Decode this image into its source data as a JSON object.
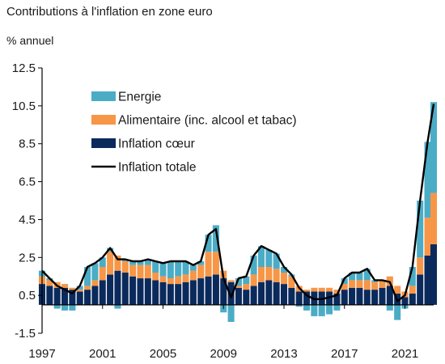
{
  "chart_data": {
    "type": "area",
    "title": "Contributions à l'inflation en zone euro",
    "ylabel": "% annuel",
    "ylim": [
      -1.5,
      12.5
    ],
    "yticks": [
      -1.5,
      0.5,
      2.5,
      4.5,
      6.5,
      8.5,
      10.5,
      12.5
    ],
    "ytick_labels": [
      "-1.5",
      "0.5",
      "2.5",
      "4.5",
      "6.5",
      "8.5",
      "10.5",
      "12.5"
    ],
    "xlim": [
      1997,
      2022.9
    ],
    "xticks": [
      1997,
      2001,
      2005,
      2009,
      2013,
      2017,
      2021
    ],
    "xtick_labels": [
      "1997",
      "2001",
      "2005",
      "2009",
      "2013",
      "2017",
      "2021"
    ],
    "baseline": 0,
    "legend_position": "top-left",
    "colors": {
      "energy": "#4bacc6",
      "food": "#f79646",
      "core": "#0b2a5c",
      "headline": "#000000"
    },
    "x": [
      1997.0,
      1997.5,
      1998.0,
      1998.5,
      1999.0,
      1999.5,
      2000.0,
      2000.5,
      2001.0,
      2001.5,
      2002.0,
      2002.5,
      2003.0,
      2003.5,
      2004.0,
      2004.5,
      2005.0,
      2005.5,
      2006.0,
      2006.5,
      2007.0,
      2007.5,
      2008.0,
      2008.5,
      2009.0,
      2009.5,
      2010.0,
      2010.5,
      2011.0,
      2011.5,
      2012.0,
      2012.5,
      2013.0,
      2013.5,
      2014.0,
      2014.5,
      2015.0,
      2015.5,
      2016.0,
      2016.5,
      2017.0,
      2017.5,
      2018.0,
      2018.5,
      2019.0,
      2019.5,
      2020.0,
      2020.5,
      2021.0,
      2021.5,
      2022.0,
      2022.5,
      2022.9
    ],
    "series": [
      {
        "name": "Inflation cœur",
        "key": "core",
        "values": [
          1.1,
          1.0,
          0.9,
          0.9,
          0.8,
          0.7,
          0.8,
          1.0,
          1.3,
          1.6,
          1.8,
          1.7,
          1.5,
          1.4,
          1.4,
          1.3,
          1.2,
          1.1,
          1.1,
          1.2,
          1.3,
          1.4,
          1.5,
          1.6,
          1.4,
          1.2,
          0.9,
          0.8,
          1.0,
          1.2,
          1.3,
          1.2,
          1.1,
          0.9,
          0.7,
          0.7,
          0.7,
          0.7,
          0.7,
          0.6,
          0.8,
          0.9,
          0.9,
          0.8,
          0.8,
          0.9,
          1.0,
          0.6,
          0.4,
          0.6,
          1.6,
          2.6,
          3.2
        ]
      },
      {
        "name": "Alimentaire (inc. alcool et tabac)",
        "key": "food",
        "values": [
          0.4,
          0.3,
          0.3,
          0.2,
          0.1,
          0.1,
          0.2,
          0.3,
          0.7,
          1.2,
          0.8,
          0.6,
          0.6,
          0.7,
          0.7,
          0.4,
          0.3,
          0.3,
          0.4,
          0.4,
          0.5,
          0.7,
          1.3,
          1.2,
          0.4,
          0.1,
          0.1,
          0.3,
          0.6,
          0.8,
          0.7,
          0.7,
          0.6,
          0.6,
          0.3,
          0.1,
          0.2,
          0.2,
          0.2,
          0.2,
          0.3,
          0.4,
          0.4,
          0.5,
          0.4,
          0.4,
          0.5,
          0.4,
          0.3,
          0.4,
          0.9,
          2.0,
          2.7
        ]
      },
      {
        "name": "Energie",
        "key": "energy",
        "values": [
          0.3,
          0.1,
          -0.2,
          -0.3,
          -0.3,
          0.2,
          1.0,
          0.9,
          0.5,
          0.2,
          -0.2,
          0.1,
          0.2,
          0.2,
          0.3,
          0.6,
          0.7,
          0.9,
          0.8,
          0.7,
          0.3,
          0.2,
          0.9,
          1.4,
          -0.4,
          -0.9,
          0.4,
          0.4,
          1.0,
          1.1,
          0.9,
          0.8,
          0.3,
          0.1,
          -0.1,
          -0.3,
          -0.6,
          -0.6,
          -0.5,
          -0.3,
          0.3,
          0.4,
          0.4,
          0.6,
          0.1,
          0.0,
          -0.3,
          -0.8,
          -0.2,
          1.0,
          3.0,
          4.0,
          4.8
        ]
      },
      {
        "name": "Inflation totale",
        "key": "headline",
        "values": [
          1.8,
          1.4,
          1.0,
          0.8,
          0.6,
          1.0,
          2.0,
          2.2,
          2.5,
          3.0,
          2.4,
          2.4,
          2.3,
          2.3,
          2.4,
          2.3,
          2.2,
          2.3,
          2.3,
          2.3,
          2.1,
          2.3,
          3.7,
          4.0,
          1.4,
          0.4,
          1.4,
          1.5,
          2.6,
          3.1,
          2.9,
          2.7,
          2.0,
          1.6,
          0.9,
          0.5,
          0.3,
          0.3,
          0.4,
          0.5,
          1.4,
          1.7,
          1.7,
          1.9,
          1.3,
          1.3,
          1.2,
          0.2,
          0.5,
          2.0,
          5.5,
          8.6,
          10.6
        ]
      }
    ]
  }
}
